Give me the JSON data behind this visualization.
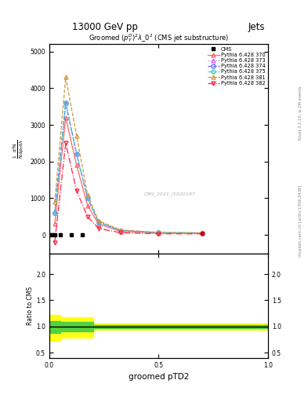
{
  "title_top": "13000 GeV pp",
  "title_right": "Jets",
  "plot_title": "Groomed $(p_T^D)^2\\lambda\\_0^2$ (CMS jet substructure)",
  "xlabel": "groomed pTD2",
  "ylabel_ratio": "Ratio to CMS",
  "right_label": "Rivet 3.1.10, ≥ 2M events",
  "right_label2": "mcplots.cern.ch [arXiv:1306.3436]",
  "watermark": "CMS_2021_I1920187",
  "cms_label": "CMS",
  "pythia_x": [
    0.025,
    0.075,
    0.125,
    0.175,
    0.225,
    0.325,
    0.5,
    0.7
  ],
  "py370_y": [
    300,
    3200,
    1900,
    800,
    300,
    100,
    50,
    50
  ],
  "py373_y": [
    600,
    3600,
    2200,
    1000,
    350,
    120,
    60,
    55
  ],
  "py374_y": [
    600,
    3600,
    2200,
    1000,
    350,
    120,
    60,
    55
  ],
  "py375_y": [
    600,
    3600,
    2200,
    1000,
    350,
    120,
    60,
    55
  ],
  "py381_y": [
    900,
    4300,
    2700,
    1100,
    390,
    140,
    70,
    60
  ],
  "py382_y": [
    -200,
    2500,
    1200,
    500,
    180,
    60,
    30,
    30
  ],
  "color_370": "#ff6666",
  "color_373": "#cc66ff",
  "color_374": "#6666ff",
  "color_375": "#44cccc",
  "color_381": "#cc9944",
  "color_382": "#ff2244",
  "cms_squares_x": [
    0.005,
    0.015,
    0.025,
    0.05,
    0.1,
    0.15
  ],
  "cms_squares_y": [
    2,
    2,
    2,
    2,
    2,
    2
  ],
  "cms_dot_x": [
    0.7
  ],
  "cms_dot_y": [
    50
  ],
  "ylim_main": [
    -500,
    5200
  ],
  "yticks_main": [
    0,
    1000,
    2000,
    3000,
    4000,
    5000
  ],
  "ylim_ratio": [
    0.4,
    2.4
  ],
  "yticks_ratio": [
    0.5,
    1.0,
    1.5,
    2.0
  ],
  "xlim": [
    0.0,
    1.0
  ],
  "xticks": [
    0.0,
    0.5,
    1.0
  ],
  "ratio_yellow_x": [
    0.0,
    0.05,
    0.05,
    0.2,
    0.2,
    1.0
  ],
  "ratio_yellow_top": [
    1.22,
    1.22,
    1.17,
    1.17,
    1.05,
    1.05
  ],
  "ratio_yellow_bot": [
    0.72,
    0.72,
    0.78,
    0.78,
    0.93,
    0.93
  ],
  "ratio_green_x": [
    0.0,
    0.05,
    0.05,
    0.2,
    0.2,
    1.0
  ],
  "ratio_green_top": [
    1.1,
    1.1,
    1.08,
    1.08,
    1.02,
    1.02
  ],
  "ratio_green_bot": [
    0.88,
    0.88,
    0.9,
    0.9,
    0.97,
    0.97
  ]
}
